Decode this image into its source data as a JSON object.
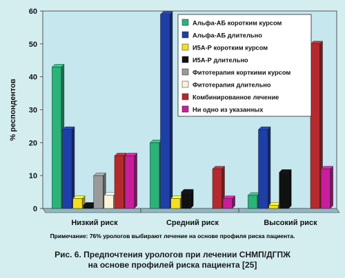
{
  "chart_data": {
    "type": "bar",
    "categories": [
      "Низкий риск",
      "Средний риск",
      "Высокий риск"
    ],
    "series": [
      {
        "name": "Альфа-АБ коротким курсом",
        "color": "#2bb37a",
        "values": [
          43,
          20,
          4
        ]
      },
      {
        "name": "Альфа-АБ длительно",
        "color": "#1f3fa8",
        "values": [
          24,
          59,
          24
        ]
      },
      {
        "name": "И5А-Р коротким курсом",
        "color": "#f2e01e",
        "values": [
          3,
          3,
          1
        ]
      },
      {
        "name": "И5А-Р длительно",
        "color": "#111111",
        "values": [
          1,
          5,
          11
        ]
      },
      {
        "name": "Фитотерапия корткими курсом",
        "color": "#9a9a9a",
        "values": [
          10,
          0,
          0
        ]
      },
      {
        "name": "Фитотерапия длительно",
        "color": "#fbf4d6",
        "values": [
          4,
          0,
          0
        ]
      },
      {
        "name": "Комбинированное лечение",
        "color": "#b52a2e",
        "values": [
          16,
          12,
          50
        ]
      },
      {
        "name": "Ни одно из указанных",
        "color": "#c81e9c",
        "values": [
          16,
          3,
          12
        ]
      }
    ],
    "ylabel": "% респондентов",
    "ylim": [
      0,
      60
    ],
    "yticks": [
      0,
      10,
      20,
      30,
      40,
      50,
      60
    ],
    "grid": false,
    "legend_position": "top-right"
  },
  "note": "Примечание: 76% урологов выбирают лечение на основе профиля риска пациента.",
  "caption_line1": "Рис. 6. Предпочтения урологов при лечении СНМП/ДГПЖ",
  "caption_line2": "на основе профилей риска пациента [25]"
}
